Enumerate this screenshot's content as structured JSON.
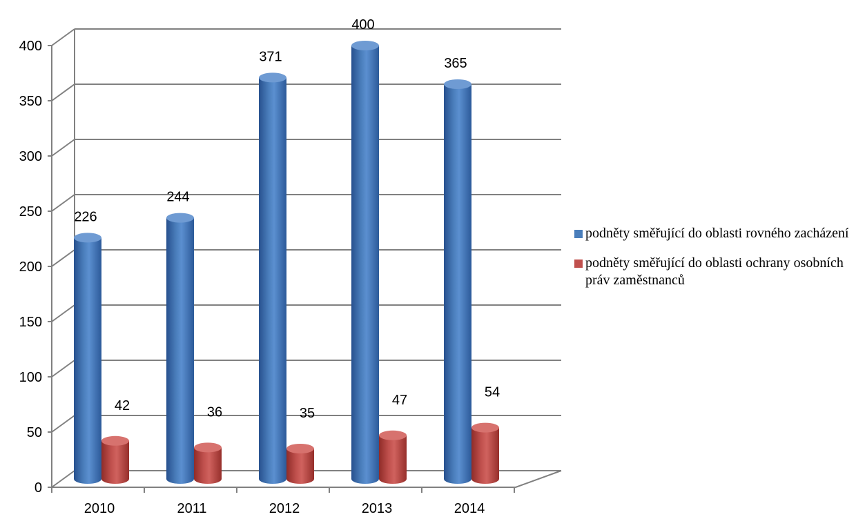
{
  "chart_data": {
    "type": "bar",
    "categories": [
      "2010",
      "2011",
      "2012",
      "2013",
      "2014"
    ],
    "series": [
      {
        "name": "podněty směřující do oblasti rovného zacházení",
        "color": "#4a7ebb",
        "values": [
          226,
          244,
          371,
          400,
          365
        ]
      },
      {
        "name": "podněty směřující do oblasti ochrany osobních práv zaměstnanců",
        "color": "#c0504d",
        "values": [
          42,
          36,
          35,
          47,
          54
        ]
      }
    ],
    "y_ticks": [
      "0",
      "50",
      "100",
      "150",
      "200",
      "250",
      "300",
      "350",
      "400"
    ],
    "ylim": [
      0,
      400
    ],
    "grid": true,
    "legend_position": "right",
    "title": "",
    "xlabel": "",
    "ylabel": ""
  }
}
